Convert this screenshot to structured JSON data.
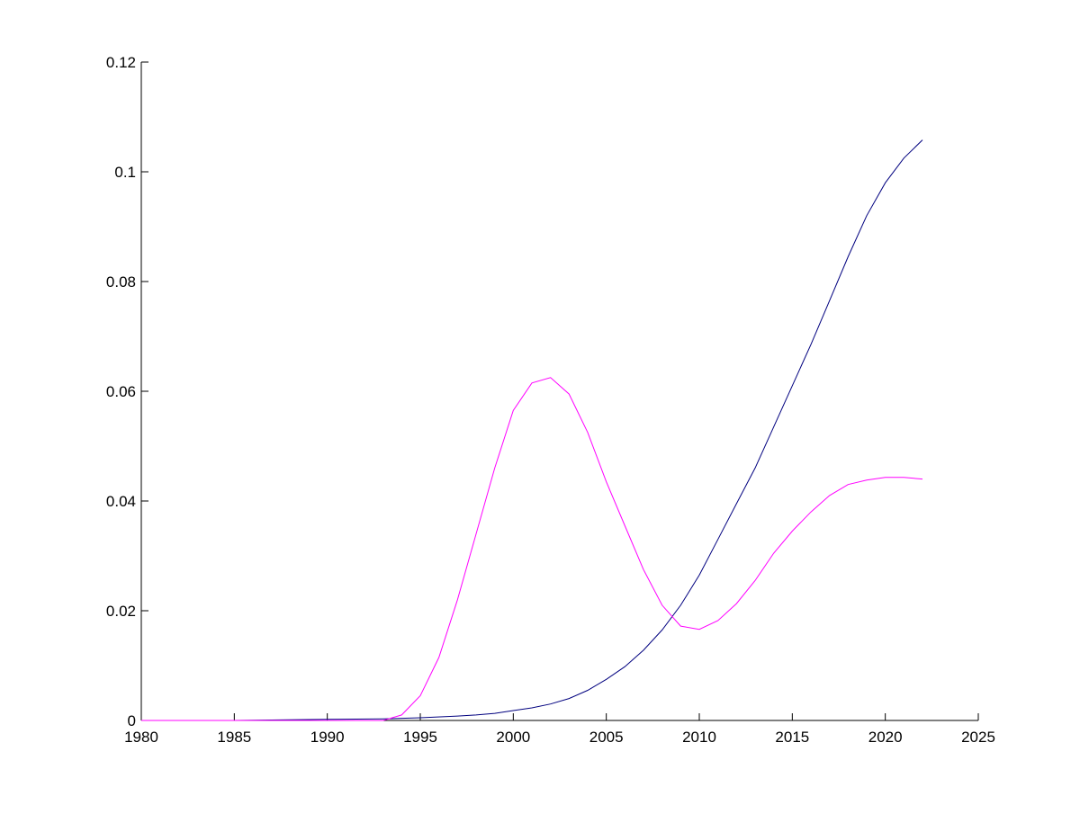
{
  "chart_data": {
    "type": "line",
    "title": "",
    "xlabel": "",
    "ylabel": "",
    "xlim": [
      1980,
      2025
    ],
    "ylim": [
      0,
      0.12
    ],
    "x_ticks": [
      1980,
      1985,
      1990,
      1995,
      2000,
      2005,
      2010,
      2015,
      2020,
      2025
    ],
    "x_tick_labels": [
      "1980",
      "1985",
      "1990",
      "1995",
      "2000",
      "2005",
      "2010",
      "2015",
      "2020",
      "2025"
    ],
    "y_ticks": [
      0,
      0.02,
      0.04,
      0.06,
      0.08,
      0.1,
      0.12
    ],
    "y_tick_labels": [
      "0",
      "0.02",
      "0.04",
      "0.06",
      "0.08",
      "0.1",
      "0.12"
    ],
    "grid": false,
    "legend": "none",
    "series": [
      {
        "color": "#00007f",
        "x": [
          1980,
          1985,
          1990,
          1993,
          1995,
          1997,
          1998,
          1999,
          2000,
          2001,
          2002,
          2003,
          2004,
          2005,
          2006,
          2007,
          2008,
          2009,
          2010,
          2011,
          2012,
          2013,
          2014,
          2015,
          2016,
          2017,
          2018,
          2019,
          2020,
          2021,
          2022
        ],
        "y": [
          0,
          0,
          0.0002,
          0.0003,
          0.0005,
          0.0008,
          0.001,
          0.0013,
          0.0018,
          0.0023,
          0.003,
          0.004,
          0.0055,
          0.0075,
          0.0098,
          0.0128,
          0.0165,
          0.021,
          0.0265,
          0.033,
          0.0395,
          0.046,
          0.0535,
          0.061,
          0.0685,
          0.0765,
          0.0845,
          0.092,
          0.098,
          0.1025,
          0.1058
        ]
      },
      {
        "color": "#ff00ff",
        "x": [
          1980,
          1985,
          1990,
          1993,
          1994,
          1995,
          1996,
          1997,
          1998,
          1999,
          2000,
          2001,
          2002,
          2003,
          2004,
          2005,
          2006,
          2007,
          2008,
          2009,
          2010,
          2011,
          2012,
          2013,
          2014,
          2015,
          2016,
          2017,
          2018,
          2019,
          2020,
          2021,
          2022
        ],
        "y": [
          0,
          0,
          0,
          0,
          0.001,
          0.0045,
          0.0115,
          0.022,
          0.034,
          0.046,
          0.0565,
          0.0615,
          0.0625,
          0.0595,
          0.0525,
          0.0435,
          0.0355,
          0.0275,
          0.021,
          0.0172,
          0.0166,
          0.0182,
          0.0213,
          0.0255,
          0.0305,
          0.0345,
          0.038,
          0.041,
          0.043,
          0.0438,
          0.0443,
          0.0443,
          0.044
        ]
      }
    ]
  }
}
